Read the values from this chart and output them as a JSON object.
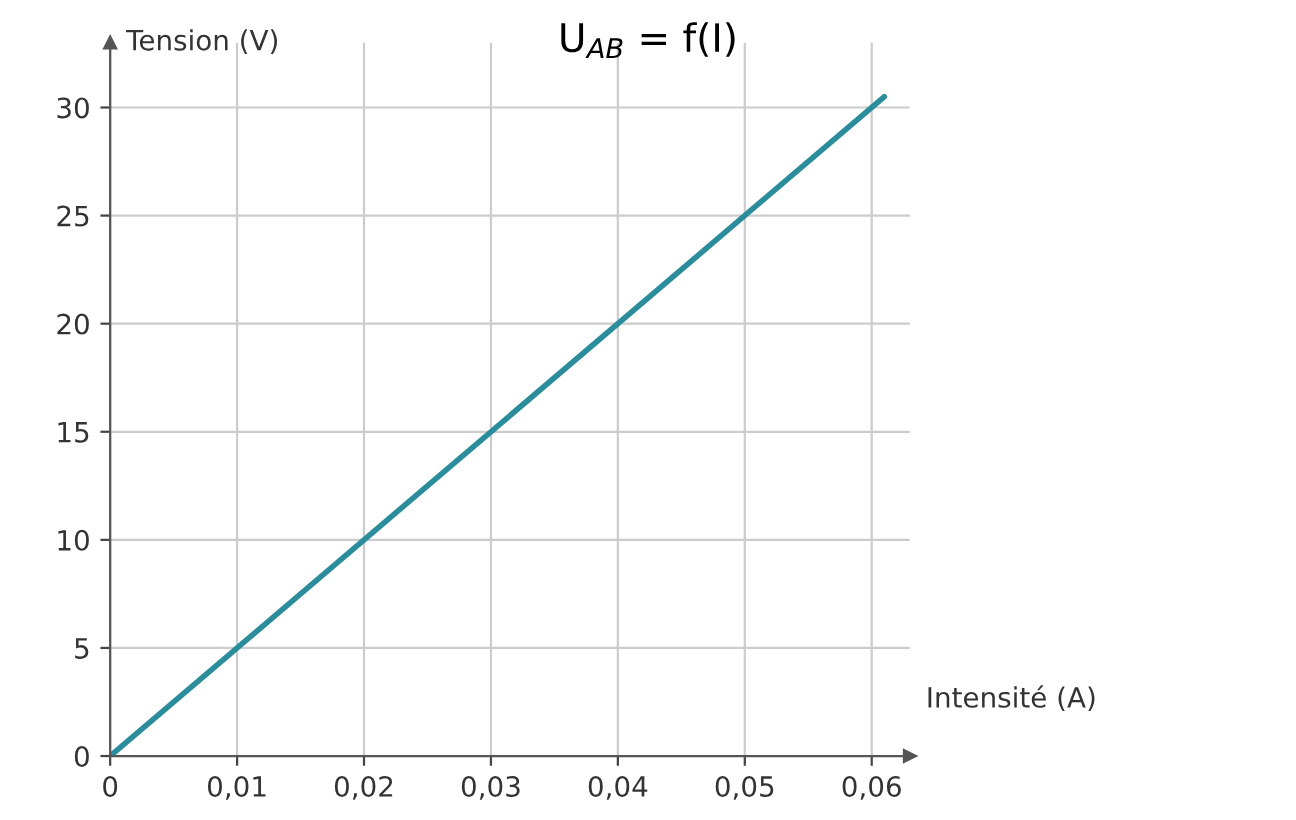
{
  "chart_data": {
    "type": "line",
    "title": "U$_{AB}$ = f(I)",
    "xlabel": "Intensité (A)",
    "ylabel": "Tension (V)",
    "x": [
      0,
      0.061
    ],
    "series": [
      {
        "color": "#2b8c9c",
        "values": [
          0,
          30.5
        ]
      }
    ],
    "xlim": [
      0,
      0.063
    ],
    "ylim": [
      0,
      33
    ],
    "xticks": [
      0,
      {
        "value": 0.01,
        "label": "0,01"
      },
      {
        "value": 0.02,
        "label": "0,02"
      },
      {
        "value": 0.03,
        "label": "0,03"
      },
      {
        "value": 0.04,
        "label": "0,04"
      },
      {
        "value": 0.05,
        "label": "0,05"
      },
      {
        "value": 0.06,
        "label": "0,06"
      }
    ],
    "yticks": [
      0,
      5,
      10,
      15,
      20,
      25,
      30
    ],
    "grid": true,
    "marker": "none",
    "line_style": "solid"
  }
}
